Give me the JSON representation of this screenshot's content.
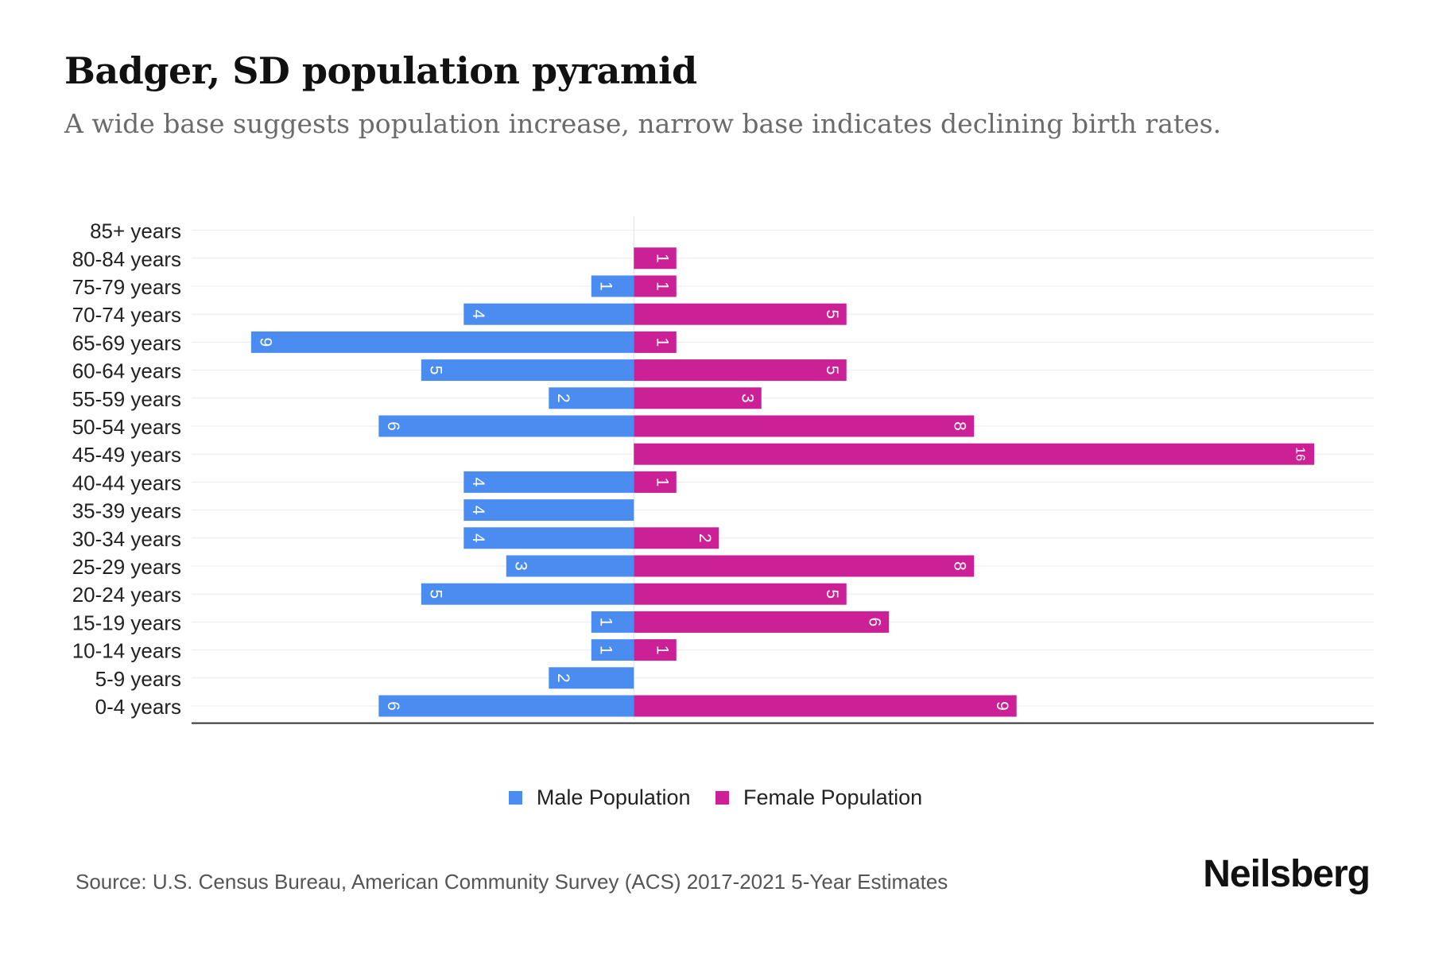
{
  "title": "Badger, SD population pyramid",
  "subtitle": "A wide base suggests population increase, narrow base indicates declining birth rates.",
  "source": "Source: U.S. Census Bureau, American Community Survey (ACS) 2017-2021 5-Year Estimates",
  "brand": "Neilsberg",
  "colors": {
    "male": "#4a8cf0",
    "female": "#cc2196"
  },
  "chart_data": {
    "type": "bar",
    "orientation": "horizontal",
    "categories": [
      "85+ years",
      "80-84 years",
      "75-79 years",
      "70-74 years",
      "65-69 years",
      "60-64 years",
      "55-59 years",
      "50-54 years",
      "45-49 years",
      "40-44 years",
      "35-39 years",
      "30-34 years",
      "25-29 years",
      "20-24 years",
      "15-19 years",
      "10-14 years",
      "5-9 years",
      "0-4 years"
    ],
    "series": [
      {
        "name": "Male Population",
        "values": [
          0,
          0,
          1,
          4,
          9,
          5,
          2,
          6,
          0,
          4,
          4,
          4,
          3,
          5,
          1,
          1,
          2,
          6
        ]
      },
      {
        "name": "Female Population",
        "values": [
          0,
          1,
          1,
          5,
          1,
          5,
          3,
          8,
          16,
          1,
          0,
          2,
          8,
          5,
          6,
          1,
          0,
          9
        ]
      }
    ],
    "xlim": [
      -10.4,
      17.4
    ],
    "grid": true,
    "legend": "bottom-center"
  }
}
